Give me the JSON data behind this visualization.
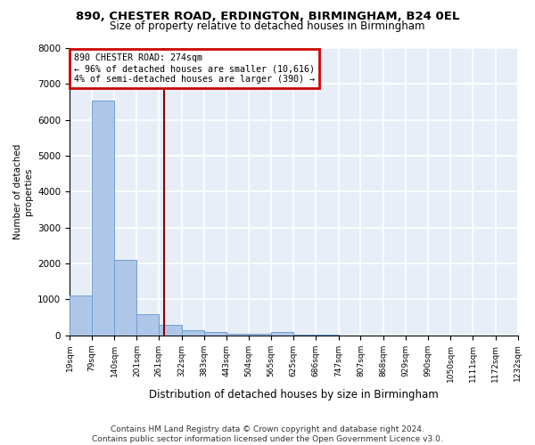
{
  "title": "890, CHESTER ROAD, ERDINGTON, BIRMINGHAM, B24 0EL",
  "subtitle": "Size of property relative to detached houses in Birmingham",
  "xlabel": "Distribution of detached houses by size in Birmingham",
  "ylabel": "Number of detached\nproperties",
  "footer": "Contains HM Land Registry data © Crown copyright and database right 2024.\nContains public sector information licensed under the Open Government Licence v3.0.",
  "annotation_line1": "890 CHESTER ROAD: 274sqm",
  "annotation_line2": "← 96% of detached houses are smaller (10,616)",
  "annotation_line3": "4% of semi-detached houses are larger (390) →",
  "property_size": 274,
  "bin_edges": [
    19,
    79,
    140,
    201,
    261,
    322,
    383,
    443,
    504,
    565,
    625,
    686,
    747,
    807,
    868,
    929,
    990,
    1050,
    1111,
    1172,
    1232
  ],
  "bar_heights": [
    1100,
    6550,
    2100,
    590,
    290,
    135,
    85,
    50,
    35,
    100,
    10,
    8,
    6,
    5,
    4,
    3,
    3,
    2,
    2,
    1
  ],
  "bar_color": "#aec6e8",
  "bar_edge_color": "#6fa0d0",
  "vline_color": "#8b0000",
  "annotation_box_edgecolor": "#cc0000",
  "background_color": "#e8eef8",
  "grid_color": "#ffffff",
  "ylim": [
    0,
    8000
  ],
  "yticks": [
    0,
    1000,
    2000,
    3000,
    4000,
    5000,
    6000,
    7000,
    8000
  ]
}
